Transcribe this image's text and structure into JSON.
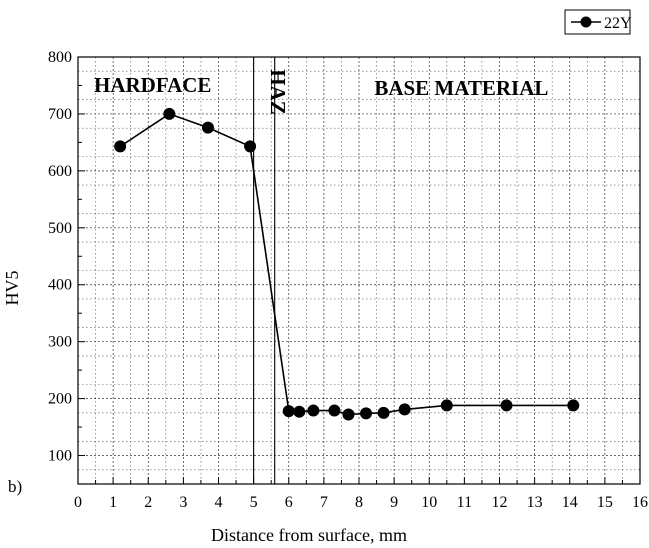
{
  "chart_data": {
    "type": "line",
    "xlabel": "Distance from surface, mm",
    "ylabel": "HV5",
    "xlim": [
      0,
      16
    ],
    "ylim": [
      50,
      800
    ],
    "x_ticks": [
      0,
      1,
      2,
      3,
      4,
      5,
      6,
      7,
      8,
      9,
      10,
      11,
      12,
      13,
      14,
      15,
      16
    ],
    "y_ticks": [
      100,
      200,
      300,
      400,
      500,
      600,
      700,
      800
    ],
    "grid": true,
    "legend_position": "top-right",
    "panel_label": "b)",
    "series": [
      {
        "name": "22Y",
        "color": "#000000",
        "marker": "filled-circle",
        "x": [
          1.2,
          2.6,
          3.7,
          4.9,
          6.0,
          6.3,
          6.7,
          7.3,
          7.7,
          8.2,
          8.7,
          9.3,
          10.5,
          12.2,
          14.1
        ],
        "y": [
          643,
          700,
          676,
          643,
          178,
          177,
          179,
          179,
          172,
          174,
          175,
          181,
          188,
          188,
          188
        ]
      }
    ],
    "regions": [
      {
        "label": "HARDFACE",
        "x_from": 0,
        "x_to": 5.0
      },
      {
        "label": "HAZ",
        "x_from": 5.0,
        "x_to": 5.6,
        "orientation": "vertical"
      },
      {
        "label": "BASE MATERIAL",
        "x_from": 5.6,
        "x_to": 16
      }
    ]
  }
}
